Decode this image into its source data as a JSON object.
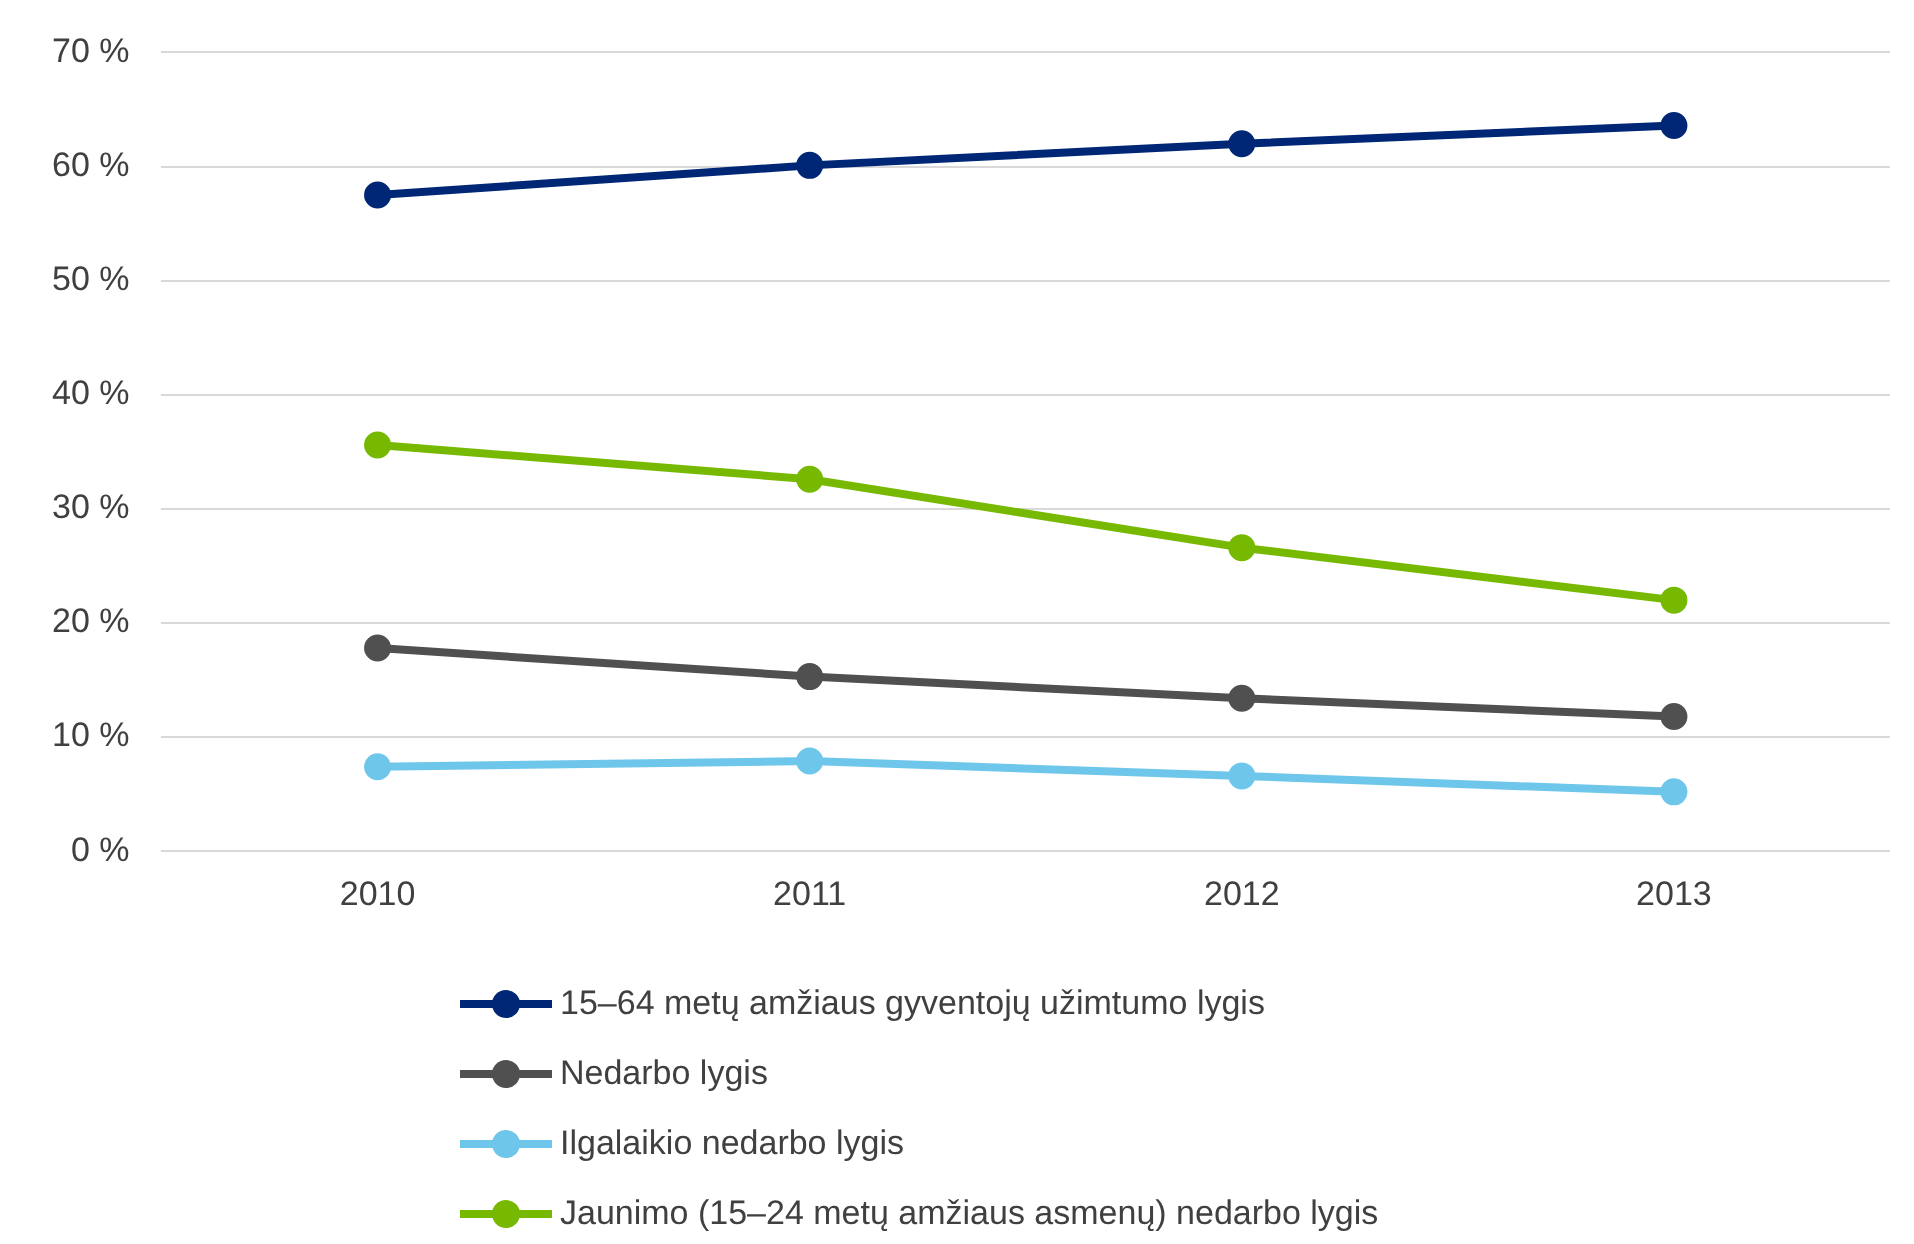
{
  "chart_data": {
    "type": "line",
    "categories": [
      "2010",
      "2011",
      "2012",
      "2013"
    ],
    "series": [
      {
        "name": "15–64 metų amžiaus gyventojų užimtumo lygis",
        "color": "#002776",
        "values": [
          57.5,
          60.1,
          62.0,
          63.6
        ]
      },
      {
        "name": "Nedarbo lygis",
        "color": "#505050",
        "values": [
          17.8,
          15.3,
          13.4,
          11.8
        ]
      },
      {
        "name": "Ilgalaikio nedarbo lygis",
        "color": "#6ec6ea",
        "values": [
          7.4,
          7.9,
          6.6,
          5.2
        ]
      },
      {
        "name": "Jaunimo (15–24 metų amžiaus asmenų) nedarbo lygis",
        "color": "#76b900",
        "values": [
          35.6,
          32.6,
          26.6,
          22.0
        ]
      }
    ],
    "ylim": [
      0,
      70
    ],
    "yticks": [
      {
        "value": 0,
        "label": "0 %"
      },
      {
        "value": 10,
        "label": "10 %"
      },
      {
        "value": 20,
        "label": "20 %"
      },
      {
        "value": 30,
        "label": "30 %"
      },
      {
        "value": 40,
        "label": "40 %"
      },
      {
        "value": 50,
        "label": "50 %"
      },
      {
        "value": 60,
        "label": "60 %"
      },
      {
        "value": 70,
        "label": "70 %"
      }
    ],
    "grid": "y",
    "legend": "bottom",
    "marker": "circle",
    "line_style": "solid"
  }
}
